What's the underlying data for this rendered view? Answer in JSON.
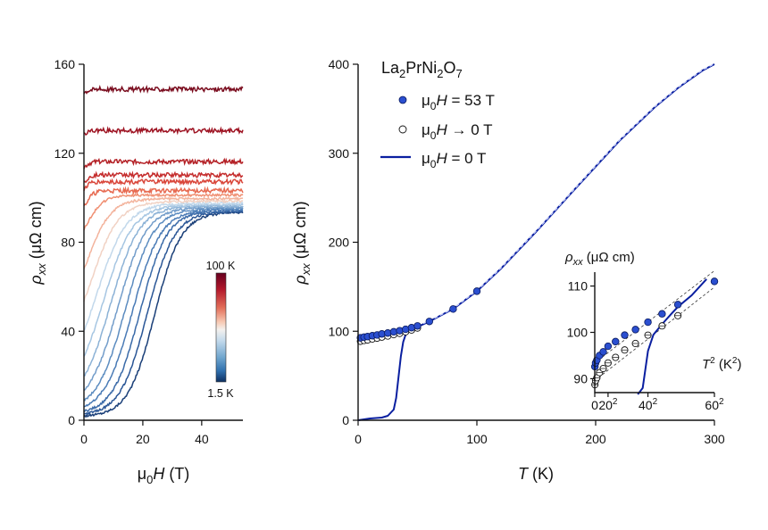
{
  "chart_data": [
    {
      "type": "line",
      "xlabel": "μ0H (T)",
      "ylabel": "ρxx (μΩ cm)",
      "xlim": [
        0,
        54
      ],
      "ylim": [
        0,
        160
      ],
      "xticks": [
        "0",
        "20",
        "40"
      ],
      "yticks": [
        "0",
        "40",
        "80",
        "120",
        "160"
      ],
      "legend": {
        "type": "colorbar",
        "min_label": "1.5 K",
        "max_label": "100 K"
      },
      "series": [
        {
          "color": "#1a3f78",
          "onset": 24.0,
          "width": 4.5,
          "rho0": 1.5,
          "rhoN": 93.5
        },
        {
          "color": "#2a5696",
          "onset": 21.5,
          "width": 4.6,
          "rho0": 2.0,
          "rhoN": 93.8
        },
        {
          "color": "#3a6aa8",
          "onset": 19.0,
          "width": 4.6,
          "rho0": 2.6,
          "rhoN": 94.2
        },
        {
          "color": "#4a7bb6",
          "onset": 16.5,
          "width": 4.8,
          "rho0": 3.3,
          "rhoN": 94.7
        },
        {
          "color": "#5c8cc0",
          "onset": 14.0,
          "width": 4.8,
          "rho0": 4.2,
          "rhoN": 95.2
        },
        {
          "color": "#739dca",
          "onset": 11.5,
          "width": 4.9,
          "rho0": 5.6,
          "rhoN": 95.8
        },
        {
          "color": "#8cb2d6",
          "onset": 9.0,
          "width": 4.9,
          "rho0": 7.5,
          "rhoN": 96.3
        },
        {
          "color": "#a6c6e2",
          "onset": 6.7,
          "width": 5.0,
          "rho0": 11.0,
          "rhoN": 96.9
        },
        {
          "color": "#c2d8eb",
          "onset": 4.5,
          "width": 5.0,
          "rho0": 17.0,
          "rhoN": 97.5
        },
        {
          "color": "#f1d2c4",
          "onset": 2.6,
          "width": 4.6,
          "rho0": 28.0,
          "rhoN": 98.4
        },
        {
          "color": "#f3b39c",
          "onset": 1.2,
          "width": 4.0,
          "rho0": 44.0,
          "rhoN": 99.6
        },
        {
          "color": "#f09073",
          "onset": 0.2,
          "width": 3.0,
          "rho0": 71.0,
          "rhoN": 101.2
        },
        {
          "color": "#e76a51",
          "onset": 0.0,
          "width": 1.5,
          "rho0": 88.5,
          "rhoN": 103.2
        },
        {
          "color": "#d9463a",
          "onset": 0.0,
          "width": 1.0,
          "rho0": 100.0,
          "rhoN": 107.2
        },
        {
          "color": "#c52d2d",
          "onset": 0.0,
          "width": 1.0,
          "rho0": 103.0,
          "rhoN": 110.2
        },
        {
          "color": "#b42126",
          "onset": 0.0,
          "width": 1.0,
          "rho0": 111.0,
          "rhoN": 116.2
        },
        {
          "color": "#9e1423",
          "onset": 0.0,
          "width": 1.0,
          "rho0": 127.5,
          "rhoN": 130.2
        },
        {
          "color": "#7a0c1e",
          "onset": 0.0,
          "width": 1.0,
          "rho0": 146.0,
          "rhoN": 148.8
        }
      ]
    },
    {
      "type": "scatter",
      "title": "La2PrNi2O7",
      "xlabel": "T (K)",
      "ylabel": "ρxx (μΩ cm)",
      "xlim": [
        0,
        300
      ],
      "ylim": [
        0,
        400
      ],
      "xticks": [
        "0",
        "100",
        "200",
        "300"
      ],
      "yticks": [
        "0",
        "100",
        "200",
        "300",
        "400"
      ],
      "legend_position": "top-left",
      "series": [
        {
          "name": "μ0H = 53 T",
          "color": "#2b4fd0",
          "x": [
            2,
            5,
            8,
            12,
            16,
            20,
            25,
            30,
            35,
            40,
            45,
            50,
            60,
            80,
            100
          ],
          "y": [
            92.6,
            93.4,
            94.0,
            95.0,
            95.8,
            97.0,
            98.0,
            99.4,
            100.6,
            102.2,
            104.0,
            106.0,
            111.0,
            125.0,
            145.0
          ]
        },
        {
          "name": "μ0H → 0 T",
          "color": "#ffffff",
          "x": [
            2,
            5,
            8,
            12,
            16,
            20,
            25,
            30,
            35,
            40,
            45,
            50
          ],
          "y": [
            88.7,
            89.6,
            90.2,
            91.3,
            92.2,
            93.4,
            94.6,
            96.2,
            97.6,
            99.4,
            101.4,
            103.6
          ]
        },
        {
          "name": "μ0H =   0 T",
          "color": "#0a1fa0",
          "x": [
            0,
            10,
            20,
            25,
            30,
            32,
            34,
            36,
            38,
            40,
            42,
            45,
            50,
            60,
            80,
            100,
            120,
            150,
            180,
            200,
            220,
            250,
            270,
            290,
            300
          ],
          "y": [
            0,
            2,
            3,
            5,
            12,
            25,
            48,
            72,
            88,
            96,
            99.5,
            102,
            105,
            111,
            125,
            145,
            170,
            212,
            256,
            285,
            314,
            352,
            374,
            393,
            400
          ]
        }
      ],
      "inset": {
        "xlabel": "T2 (K2)",
        "ylabel": "ρxx (μΩ cm)",
        "xlim": [
          0,
          3600
        ],
        "ylim": [
          87,
          113
        ],
        "xticks": [
          "0",
          "20",
          "40",
          "60"
        ],
        "yticks": [
          "90",
          "100",
          "110"
        ]
      }
    }
  ]
}
